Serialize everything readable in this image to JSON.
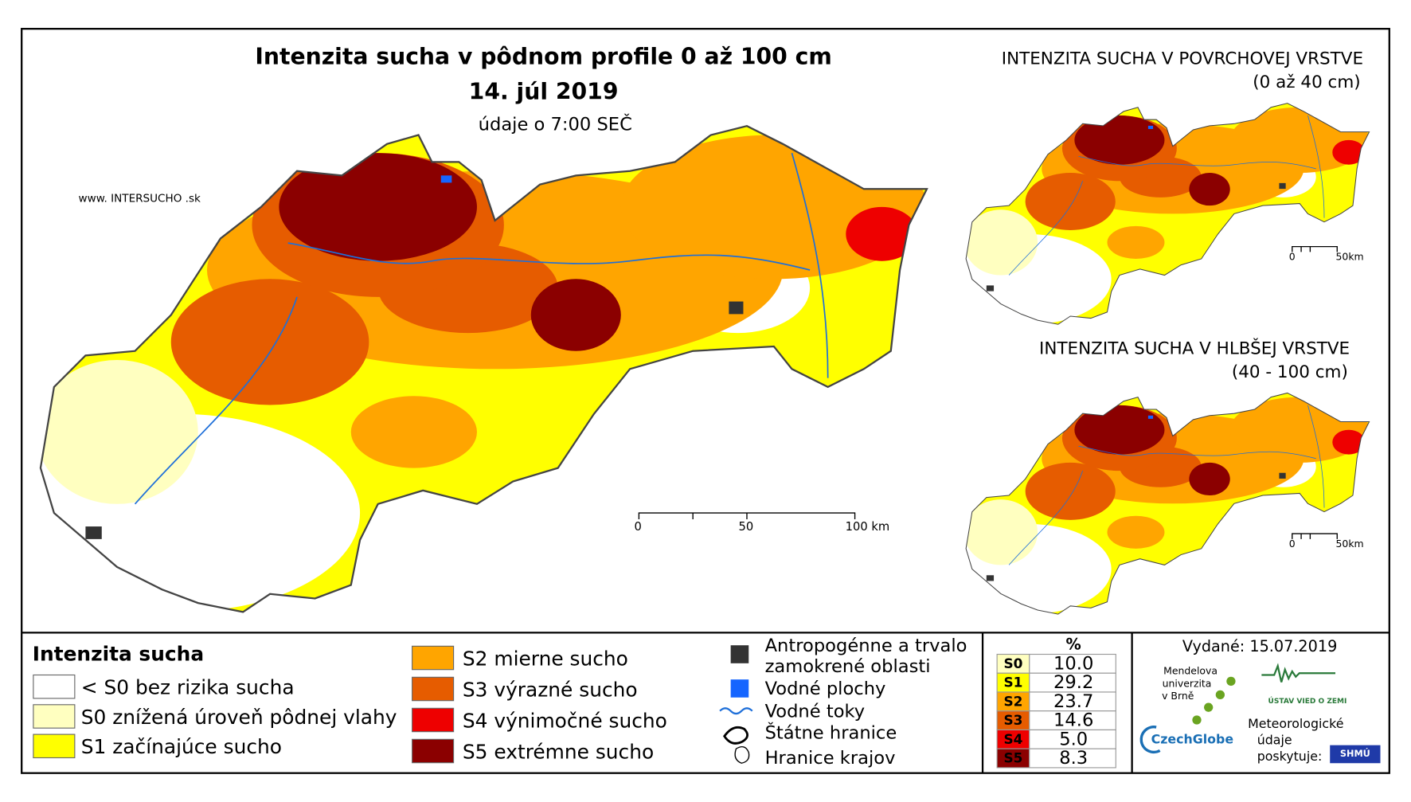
{
  "header": {
    "title": "Intenzita sucha v pôdnom profile 0 až 100 cm",
    "date": "14. júl 2019",
    "subtitle": "údaje o 7:00 SEČ",
    "website": "www. INTERSUCHO .sk"
  },
  "main_map": {
    "scale_labels": [
      "0",
      "50",
      "100 km"
    ]
  },
  "inset_maps": [
    {
      "title": "INTENZITA SUCHA V POVRCHOVEJ VRSTVE",
      "subtitle": "(0 až 40 cm)",
      "scale_labels": [
        "0",
        "50km"
      ]
    },
    {
      "title": "INTENZITA SUCHA V HLBŠEJ VRSTVE",
      "subtitle": "(40 - 100 cm)",
      "scale_labels": [
        "0",
        "50km"
      ]
    }
  ],
  "legend": {
    "title": "Intenzita sucha",
    "classes": [
      {
        "label": "< S0 bez rizika sucha",
        "color": "#ffffff"
      },
      {
        "label": "S0 znížená úroveň pôdnej vlahy",
        "color": "#ffffc0"
      },
      {
        "label": "S1 začínajúce sucho",
        "color": "#ffff00"
      },
      {
        "label": "S2 mierne sucho",
        "color": "#ffa500"
      },
      {
        "label": "S3 výrazné sucho",
        "color": "#e65c00"
      },
      {
        "label": "S4 výnimočné sucho",
        "color": "#ee0000"
      },
      {
        "label": "S5 extrémne sucho",
        "color": "#8b0000"
      }
    ],
    "other": [
      "Antropogénne a trvalo",
      "zamokrené oblasti",
      "Vodné plochy",
      "Vodné toky",
      "Štátne hranice",
      "Hranice krajov"
    ]
  },
  "stats": {
    "header": "%",
    "rows": [
      [
        "S0",
        "10.0"
      ],
      [
        "S1",
        "29.2"
      ],
      [
        "S2",
        "23.7"
      ],
      [
        "S3",
        "14.6"
      ],
      [
        "S4",
        "5.0"
      ],
      [
        "S5",
        "8.3"
      ]
    ]
  },
  "footer": {
    "issued": "Vydané: 15.07.2019",
    "mendel": [
      "Mendelova",
      "univerzita",
      "v Brně"
    ],
    "czechglobe": "CzechGlobe",
    "ustav": "ÚSTAV VIED O ZEMI",
    "meteo": [
      "Meteorologické",
      "údaje",
      "poskytuje:"
    ],
    "shmu": "SHMÚ"
  }
}
